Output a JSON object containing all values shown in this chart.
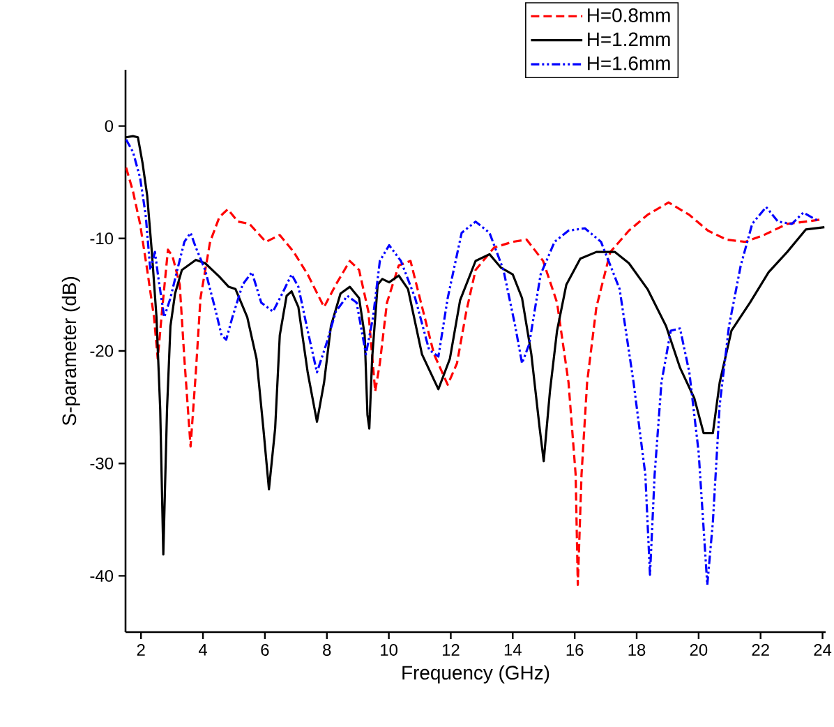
{
  "chart_data": {
    "type": "line",
    "xlabel": "Frequency (GHz)",
    "ylabel": "S-parameter (dB)",
    "xlim": [
      1.5,
      24.1
    ],
    "ylim": [
      -45,
      5
    ],
    "xticks": [
      2,
      4,
      6,
      8,
      10,
      12,
      14,
      16,
      18,
      20,
      22,
      24
    ],
    "yticks": [
      -40,
      -30,
      -20,
      -10,
      0
    ],
    "grid": false,
    "legend": "top right",
    "marker": "none",
    "series": [
      {
        "name": "H=0.8mm",
        "color": "#ff0000",
        "line_style": "dashed",
        "x": [
          1.52,
          1.74,
          1.97,
          2.2,
          2.42,
          2.54,
          2.69,
          2.87,
          3.02,
          3.25,
          3.4,
          3.6,
          3.77,
          3.92,
          4.23,
          4.53,
          4.8,
          5.13,
          5.5,
          6.03,
          6.48,
          6.93,
          7.38,
          7.91,
          8.29,
          8.74,
          9.04,
          9.34,
          9.56,
          9.71,
          9.94,
          10.32,
          10.7,
          11.0,
          11.46,
          11.9,
          12.2,
          12.5,
          12.8,
          13.4,
          14.0,
          14.45,
          14.98,
          15.43,
          15.8,
          16.03,
          16.1,
          16.22,
          16.4,
          16.7,
          17.15,
          17.75,
          18.35,
          19.03,
          19.7,
          20.3,
          20.9,
          21.5,
          22.1,
          22.86,
          23.46,
          23.98
        ],
        "values": [
          -3.7,
          -5.8,
          -8.7,
          -12.8,
          -17,
          -20.7,
          -16.1,
          -11,
          -11.6,
          -14.1,
          -20.7,
          -28.5,
          -21.9,
          -15.3,
          -10.3,
          -8.1,
          -7.4,
          -8.5,
          -8.7,
          -10.3,
          -9.7,
          -11.2,
          -13.2,
          -16.1,
          -14.1,
          -12,
          -12.8,
          -16.5,
          -23.6,
          -21.1,
          -15.7,
          -12.4,
          -12,
          -15.3,
          -20.3,
          -23,
          -21.1,
          -16.5,
          -12.8,
          -10.8,
          -10.3,
          -10.1,
          -12,
          -15.7,
          -22.8,
          -31,
          -40.8,
          -31,
          -22.8,
          -16.1,
          -11.2,
          -9.3,
          -7.9,
          -6.8,
          -7.9,
          -9.3,
          -10.1,
          -10.3,
          -9.7,
          -8.7,
          -8.5,
          -8.3
        ]
      },
      {
        "name": "H=1.2mm",
        "color": "#000000",
        "line_style": "solid",
        "x": [
          1.52,
          1.74,
          1.9,
          2.05,
          2.2,
          2.35,
          2.5,
          2.62,
          2.72,
          2.84,
          2.95,
          3.1,
          3.32,
          3.77,
          4.07,
          4.53,
          4.83,
          5.05,
          5.43,
          5.73,
          5.95,
          6.13,
          6.33,
          6.48,
          6.7,
          6.86,
          7.08,
          7.38,
          7.68,
          7.91,
          8.13,
          8.44,
          8.74,
          9.04,
          9.22,
          9.31,
          9.37,
          9.46,
          9.64,
          9.79,
          10.01,
          10.32,
          10.62,
          11.07,
          11.6,
          11.97,
          12.3,
          12.8,
          13.25,
          13.62,
          14.0,
          14.3,
          14.6,
          14.87,
          15.0,
          15.2,
          15.43,
          15.73,
          16.18,
          16.7,
          17.3,
          17.75,
          18.35,
          18.95,
          19.4,
          19.86,
          20.16,
          20.46,
          20.68,
          21.06,
          21.66,
          22.26,
          22.86,
          23.46,
          24.06
        ],
        "values": [
          -1.0,
          -0.9,
          -1,
          -3.3,
          -6.2,
          -11.2,
          -17,
          -25.2,
          -38.1,
          -25.2,
          -17.8,
          -14.9,
          -12.8,
          -11.9,
          -12.2,
          -13.4,
          -14.3,
          -14.5,
          -17,
          -20.7,
          -26.9,
          -32.3,
          -26.9,
          -18.6,
          -15.1,
          -14.7,
          -16.1,
          -21.9,
          -26.3,
          -22.8,
          -17.8,
          -14.9,
          -14.3,
          -15.3,
          -18.6,
          -25.7,
          -26.9,
          -20.7,
          -14.1,
          -13.6,
          -13.9,
          -13.3,
          -14.5,
          -20.3,
          -23.4,
          -20.7,
          -15.5,
          -12,
          -11.4,
          -12.6,
          -13.2,
          -15.3,
          -20.3,
          -26.9,
          -29.8,
          -23.6,
          -18.2,
          -14.1,
          -11.8,
          -11.2,
          -11.2,
          -12.2,
          -14.5,
          -17.8,
          -21.5,
          -24.2,
          -27.3,
          -27.3,
          -22.8,
          -18.2,
          -15.7,
          -13,
          -11.2,
          -9.2,
          -9.0
        ]
      },
      {
        "name": "H=1.6mm",
        "color": "#0000ff",
        "line_style": "dashdotdot",
        "x": [
          1.52,
          1.74,
          1.97,
          2.15,
          2.3,
          2.45,
          2.57,
          2.75,
          2.95,
          3.17,
          3.4,
          3.6,
          3.77,
          4.07,
          4.38,
          4.6,
          4.75,
          4.95,
          5.28,
          5.58,
          5.88,
          6.26,
          6.56,
          6.86,
          7.08,
          7.38,
          7.68,
          7.98,
          8.29,
          8.66,
          8.96,
          9.26,
          9.49,
          9.71,
          10.01,
          10.39,
          10.85,
          11.3,
          11.6,
          11.9,
          12.35,
          12.8,
          13.25,
          13.7,
          14.08,
          14.3,
          14.53,
          14.9,
          15.35,
          15.8,
          16.33,
          16.85,
          17.45,
          17.9,
          18.28,
          18.43,
          18.58,
          18.8,
          19.1,
          19.4,
          19.7,
          20.0,
          20.28,
          20.46,
          20.68,
          20.98,
          21.36,
          21.73,
          22.18,
          22.56,
          23.01,
          23.38,
          23.9
        ],
        "values": [
          -1.2,
          -2.3,
          -4.6,
          -7.9,
          -12.8,
          -11.2,
          -13.7,
          -17,
          -15.3,
          -12.8,
          -10.3,
          -9.5,
          -10.8,
          -12.8,
          -16.1,
          -18.6,
          -19,
          -17,
          -14.1,
          -13,
          -15.7,
          -16.5,
          -14.9,
          -13.2,
          -14.3,
          -18.2,
          -21.9,
          -19.4,
          -16.5,
          -15.1,
          -15.7,
          -20.3,
          -17,
          -12,
          -10.6,
          -12,
          -15.3,
          -19.9,
          -20.5,
          -15.3,
          -9.5,
          -8.5,
          -9.5,
          -12.8,
          -17.8,
          -21.1,
          -19.4,
          -13.2,
          -10.3,
          -9.3,
          -9.1,
          -10.3,
          -14.5,
          -22.8,
          -31,
          -39.9,
          -31,
          -22.8,
          -18.2,
          -18,
          -21.9,
          -29,
          -40.8,
          -35.2,
          -24.8,
          -17.8,
          -12.4,
          -8.7,
          -7.2,
          -8.5,
          -8.7,
          -7.7,
          -8.5
        ]
      }
    ]
  }
}
